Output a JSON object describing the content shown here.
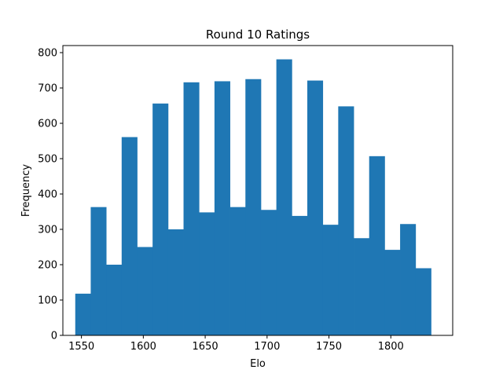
{
  "chart_data": {
    "type": "bar",
    "title": "Round 10 Ratings",
    "xlabel": "Elo",
    "ylabel": "Frequency",
    "xlim": [
      1535,
      1850
    ],
    "ylim": [
      0,
      820
    ],
    "xticks": [
      1550,
      1600,
      1650,
      1700,
      1750,
      1800
    ],
    "yticks": [
      0,
      100,
      200,
      300,
      400,
      500,
      600,
      700,
      800
    ],
    "bin_edges": [
      1545,
      1557.5,
      1570,
      1582.5,
      1595,
      1607.5,
      1620,
      1632.5,
      1645,
      1657.5,
      1670,
      1682.5,
      1695,
      1707.5,
      1720,
      1732.5,
      1745,
      1757.5,
      1770,
      1782.5,
      1795,
      1807.5,
      1820,
      1832.5
    ],
    "values": [
      118,
      363,
      200,
      561,
      250,
      656,
      300,
      716,
      348,
      719,
      363,
      725,
      355,
      781,
      338,
      721,
      313,
      648,
      275,
      507,
      242,
      315,
      190
    ],
    "bar_color": "#1f77b4",
    "grid": false
  }
}
